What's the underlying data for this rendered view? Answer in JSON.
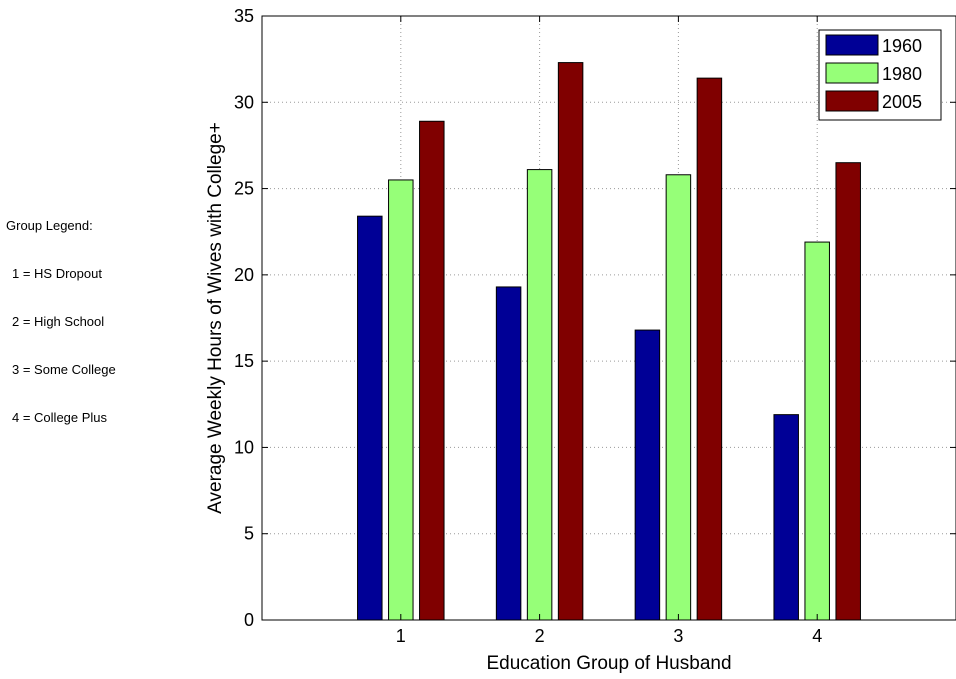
{
  "chart_data": {
    "type": "bar",
    "categories": [
      "1",
      "2",
      "3",
      "4"
    ],
    "series": [
      {
        "name": "1960",
        "color": "#000096",
        "values": [
          23.4,
          19.3,
          16.8,
          11.9
        ]
      },
      {
        "name": "1980",
        "color": "#96ff78",
        "values": [
          25.5,
          26.1,
          25.8,
          21.9
        ]
      },
      {
        "name": "2005",
        "color": "#800000",
        "values": [
          28.9,
          32.3,
          31.4,
          26.5
        ]
      }
    ],
    "title": "",
    "xlabel": "Education Group of Husband",
    "ylabel": "Average Weekly Hours of Wives with College+",
    "xlim": [
      0,
      5
    ],
    "ylim": [
      0,
      35
    ],
    "yticks": [
      0,
      5,
      10,
      15,
      20,
      25,
      30,
      35
    ],
    "xticks": [
      1,
      2,
      3,
      4
    ],
    "grid": true,
    "legend_position": "top-right"
  },
  "group_legend": {
    "title": "Group Legend:",
    "items": [
      "1 = HS Dropout",
      "2 = High School",
      "3 = Some College",
      "4 = College Plus"
    ]
  }
}
